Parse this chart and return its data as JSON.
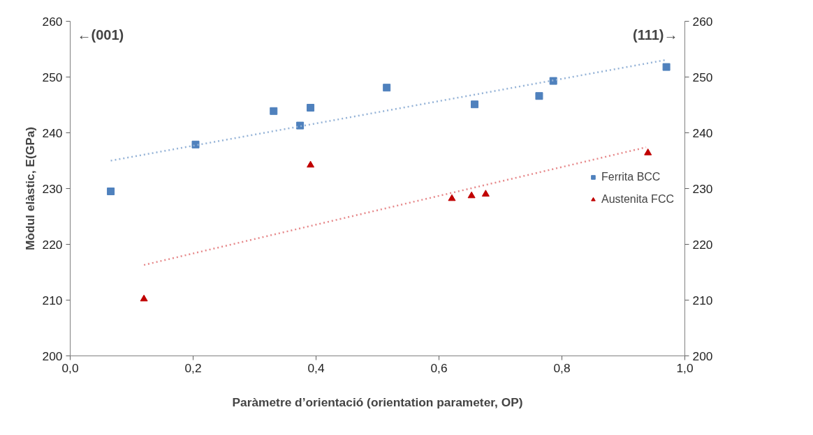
{
  "chart_data": {
    "type": "scatter",
    "xlabel": "Paràmetre d’orientació (orientation parameter, OP)",
    "ylabel": "Mòdul elàstic, E(GPa)",
    "annotations": [
      "←(001)",
      "(111)→"
    ],
    "series": [
      {
        "name": "Ferrita BCC",
        "color": "#4f81bd",
        "marker": "square",
        "x": [
          0.066,
          0.204,
          0.331,
          0.374,
          0.391,
          0.515,
          0.658,
          0.763,
          0.786,
          0.97
        ],
        "values": [
          229.5,
          237.9,
          243.9,
          241.3,
          244.5,
          248.1,
          245.1,
          246.6,
          249.3,
          251.8
        ]
      },
      {
        "name": "Austenita FCC",
        "color": "#c00000",
        "marker": "triangle",
        "x": [
          0.12,
          0.391,
          0.621,
          0.653,
          0.676,
          0.94
        ],
        "values": [
          210.2,
          234.2,
          228.2,
          228.7,
          229.0,
          236.4
        ]
      },
      {
        "type": "line",
        "color": "#95b3d7",
        "line_style": "dotted",
        "x": [
          0.066,
          0.971
        ],
        "values": [
          235.0,
          253.1
        ]
      },
      {
        "type": "line",
        "color": "#e6888a",
        "line_style": "dotted",
        "x": [
          0.12,
          0.937
        ],
        "values": [
          216.3,
          237.4
        ]
      }
    ],
    "xlim": [
      0,
      1
    ],
    "xticks": [
      {
        "value": 0,
        "label": "0,0"
      },
      {
        "value": 0.2,
        "label": "0,2"
      },
      {
        "value": 0.4,
        "label": "0,4"
      },
      {
        "value": 0.6,
        "label": "0,6"
      },
      {
        "value": 0.8,
        "label": "0,8"
      },
      {
        "value": 1,
        "label": "1,0"
      }
    ],
    "ylim": [
      200,
      260
    ],
    "yticks": [
      200,
      210,
      220,
      230,
      240,
      250,
      260
    ],
    "y2lim": [
      200,
      260
    ],
    "y2ticks": [
      200,
      210,
      220,
      230,
      240,
      250,
      260
    ],
    "grid": false,
    "legend": "right"
  }
}
